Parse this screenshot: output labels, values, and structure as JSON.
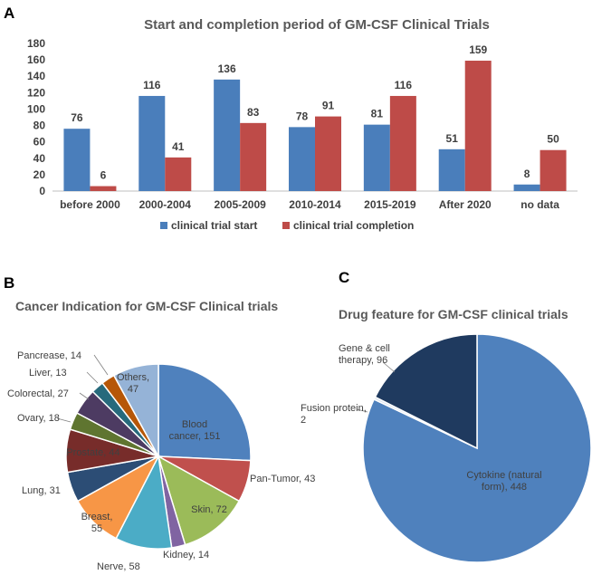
{
  "panel_labels": {
    "a": "A",
    "b": "B",
    "c": "C"
  },
  "chart_data": [
    {
      "type": "bar",
      "title": "Start and completion period of GM-CSF Clinical Trials",
      "xlabel": "",
      "ylabel": "",
      "ylim": [
        0,
        180
      ],
      "yticks": [
        0,
        20,
        40,
        60,
        80,
        100,
        120,
        140,
        160,
        180
      ],
      "grid": false,
      "legend_position": "bottom",
      "categories": [
        "before 2000",
        "2000-2004",
        "2005-2009",
        "2010-2014",
        "2015-2019",
        "After 2020",
        "no data"
      ],
      "series": [
        {
          "name": "clinical trial start",
          "color": "#4a7ebb",
          "values": [
            76,
            116,
            136,
            78,
            81,
            51,
            8
          ]
        },
        {
          "name": "clinical trial completion",
          "color": "#be4b48",
          "values": [
            6,
            41,
            83,
            91,
            116,
            159,
            50
          ]
        }
      ]
    },
    {
      "type": "pie",
      "title": "Cancer Indication for GM-CSF Clinical trials",
      "slices": [
        {
          "label": "Blood cancer",
          "value": 151,
          "color": "#4f81bd",
          "text_lines": [
            "Blood",
            "cancer, 151"
          ]
        },
        {
          "label": "Pan-Tumor",
          "value": 43,
          "color": "#c0504d",
          "text_lines": [
            "Pan-Tumor, 43"
          ]
        },
        {
          "label": "Skin",
          "value": 72,
          "color": "#9bbb59",
          "text_lines": [
            "Skin, 72"
          ]
        },
        {
          "label": "Kidney",
          "value": 14,
          "color": "#8064a2",
          "text_lines": [
            "Kidney, 14"
          ]
        },
        {
          "label": "Nerve",
          "value": 58,
          "color": "#4bacc6",
          "text_lines": [
            "Nerve, 58"
          ]
        },
        {
          "label": "Breast",
          "value": 55,
          "color": "#f79646",
          "text_lines": [
            "Breast,",
            "55"
          ]
        },
        {
          "label": "Lung",
          "value": 31,
          "color": "#2c4d75",
          "text_lines": [
            "Lung, 31"
          ]
        },
        {
          "label": "Prostate",
          "value": 44,
          "color": "#772c2a",
          "text_lines": [
            "Prostate, 44"
          ]
        },
        {
          "label": "Ovary",
          "value": 18,
          "color": "#5f7530",
          "text_lines": [
            "Ovary, 18"
          ]
        },
        {
          "label": "Colorectal",
          "value": 27,
          "color": "#4d3b62",
          "text_lines": [
            "Colorectal, 27"
          ]
        },
        {
          "label": "Liver",
          "value": 13,
          "color": "#276a7c",
          "text_lines": [
            "Liver, 13"
          ]
        },
        {
          "label": "Pancrease",
          "value": 14,
          "color": "#b65708",
          "text_lines": [
            "Pancrease, 14"
          ]
        },
        {
          "label": "Others",
          "value": 47,
          "color": "#95b3d7",
          "text_lines": [
            "Others,",
            "47"
          ]
        }
      ]
    },
    {
      "type": "pie",
      "title": "Drug feature for GM-CSF clinical trials",
      "slices": [
        {
          "label": "Cytokine (natural form)",
          "value": 448,
          "color": "#4f81bd",
          "text_lines": [
            "Cytokine (natural",
            "form), 448"
          ]
        },
        {
          "label": "Fusion protein",
          "value": 2,
          "color": "#dbe5f1",
          "text_lines": [
            "Fusion protein,",
            "2"
          ]
        },
        {
          "label": "Gene & cell therapy",
          "value": 96,
          "color": "#1f3a5f",
          "text_lines": [
            "Gene & cell",
            "therapy, 96"
          ]
        }
      ]
    }
  ]
}
